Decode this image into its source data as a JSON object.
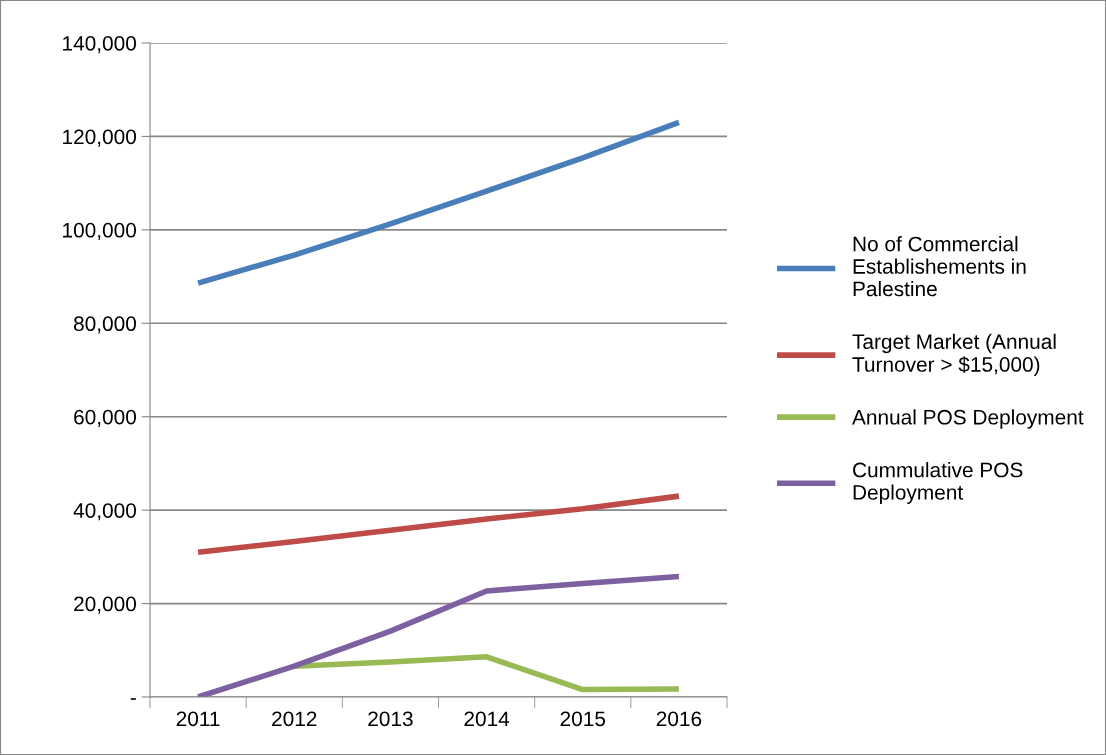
{
  "chart_data": {
    "type": "line",
    "categories": [
      "2011",
      "2012",
      "2013",
      "2014",
      "2015",
      "2016"
    ],
    "series": [
      {
        "name": "No of Commercial\nEstablishements in\nPalestine",
        "color": "#4a7ebb",
        "values": [
          88600,
          94600,
          101300,
          108300,
          115400,
          123000
        ]
      },
      {
        "name": "Target Market (Annual\nTurnover > $15,000)",
        "color": "#be4b48",
        "values": [
          31000,
          33300,
          35700,
          38100,
          40300,
          43000
        ]
      },
      {
        "name": "Annual POS Deployment",
        "color": "#98b954",
        "values": [
          null,
          6600,
          7500,
          8600,
          1600,
          1700
        ]
      },
      {
        "name": "Cummulative POS\nDeployment",
        "color": "#7d60a0",
        "values": [
          0,
          6600,
          14100,
          22700,
          24300,
          25800
        ]
      }
    ],
    "ylim": [
      0,
      140000
    ],
    "yticks": [
      {
        "value": 0,
        "label": "-"
      },
      {
        "value": 20000,
        "label": "20,000"
      },
      {
        "value": 40000,
        "label": "40,000"
      },
      {
        "value": 60000,
        "label": "60,000"
      },
      {
        "value": 80000,
        "label": "80,000"
      },
      {
        "value": 100000,
        "label": "100,000"
      },
      {
        "value": 120000,
        "label": "120,000"
      },
      {
        "value": 140000,
        "label": "140,000"
      }
    ],
    "grid": "y",
    "legend": "right",
    "marker": "none",
    "line_style": "solid"
  }
}
